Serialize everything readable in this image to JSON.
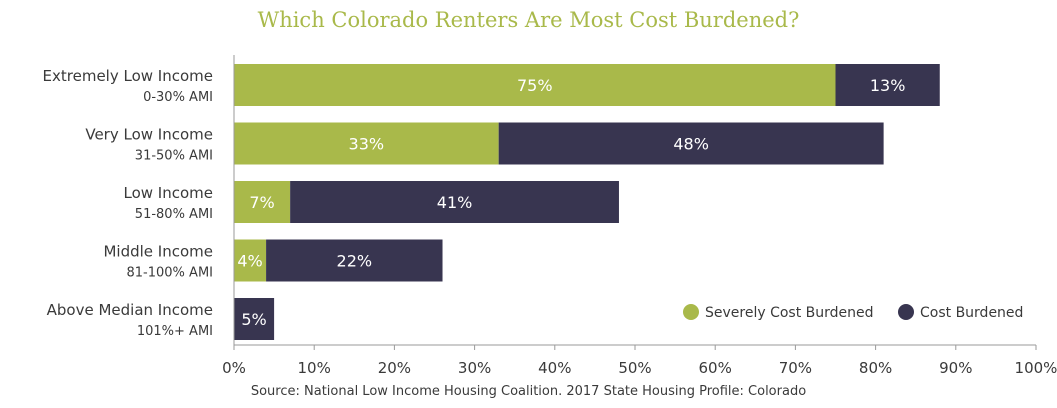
{
  "chart_data": {
    "type": "bar",
    "orientation": "horizontal",
    "stacked": true,
    "title": "Which Colorado Renters Are Most Cost Burdened?",
    "categories": [
      {
        "label": "Extremely Low Income",
        "sublabel": "0-30% AMI"
      },
      {
        "label": "Very Low Income",
        "sublabel": "31-50% AMI"
      },
      {
        "label": "Low Income",
        "sublabel": "51-80% AMI"
      },
      {
        "label": "Middle Income",
        "sublabel": "81-100% AMI"
      },
      {
        "label": "Above Median Income",
        "sublabel": "101%+ AMI"
      }
    ],
    "series": [
      {
        "name": "Severely Cost Burdened",
        "color": "#a9b94a",
        "values": [
          75,
          33,
          7,
          4,
          0
        ],
        "labels": [
          "75%",
          "33%",
          "7%",
          "4%",
          ""
        ]
      },
      {
        "name": "Cost Burdened",
        "color": "#383550",
        "values": [
          13,
          48,
          41,
          22,
          5
        ],
        "labels": [
          "13%",
          "48%",
          "41%",
          "22%",
          "5%"
        ]
      }
    ],
    "xlim": [
      0,
      100
    ],
    "xticks": [
      "0%",
      "10%",
      "20%",
      "30%",
      "40%",
      "50%",
      "60%",
      "70%",
      "80%",
      "90%",
      "100%"
    ],
    "legend_position": "bottom-right",
    "grid": false
  },
  "source": "Source: National Low Income Housing Coalition. 2017 State Housing Profile: Colorado"
}
